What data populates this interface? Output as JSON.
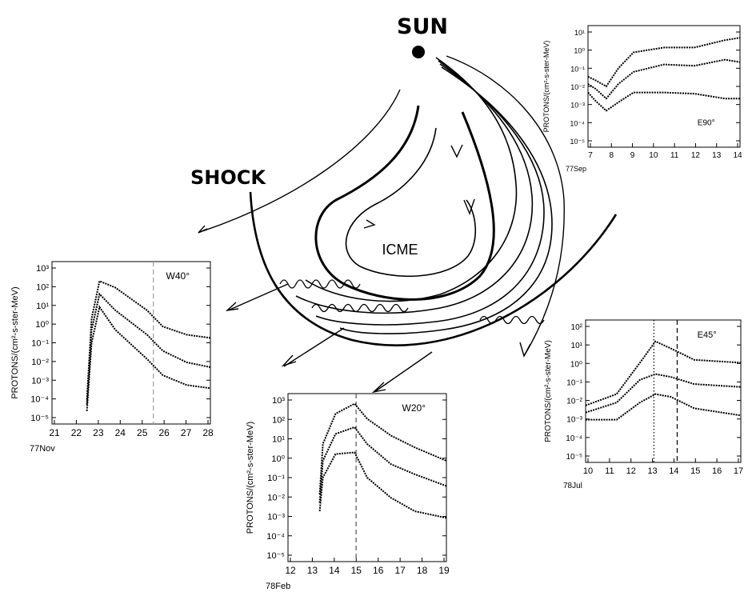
{
  "diagram": {
    "sun_label": "SUN",
    "shock_label": "SHOCK",
    "icme_label": "ICME"
  },
  "panels": [
    {
      "id": "top-right",
      "y_label": "PROTONS/(cm²-s-ster-MeV)",
      "y_ticks": [
        "10¹",
        "10⁰",
        "10⁻¹",
        "10⁻²",
        "10⁻³",
        "10⁻⁴",
        "10⁻⁵"
      ],
      "x_ticks": [
        "7",
        "8",
        "9",
        "10",
        "11",
        "12",
        "13",
        "14"
      ],
      "x_caption": "77Sep",
      "annotation": "E90°"
    },
    {
      "id": "left",
      "y_label": "PROTONS/(cm²-s-ster-MeV)",
      "y_ticks": [
        "10³",
        "10²",
        "10¹",
        "10⁰",
        "10⁻¹",
        "10⁻²",
        "10⁻³",
        "10⁻⁴",
        "10⁻⁵"
      ],
      "x_ticks": [
        "21",
        "22",
        "23",
        "24",
        "25",
        "26",
        "27",
        "28"
      ],
      "x_caption": "77Nov",
      "annotation": "W40°"
    },
    {
      "id": "bottom-middle",
      "y_label": "PROTONS/(cm²-s-ster-MeV)",
      "y_ticks": [
        "10³",
        "10²",
        "10¹",
        "10⁰",
        "10⁻¹",
        "10⁻²",
        "10⁻³",
        "10⁻⁴",
        "10⁻⁵"
      ],
      "x_ticks": [
        "12",
        "13",
        "14",
        "15",
        "16",
        "17",
        "18",
        "19"
      ],
      "x_caption": "78Feb",
      "annotation": "W20°"
    },
    {
      "id": "right",
      "y_label": "PROTONS/(cm²-s-ster-MeV)",
      "y_ticks": [
        "10²",
        "10¹",
        "10⁰",
        "10⁻¹",
        "10⁻²",
        "10⁻³",
        "10⁻⁴",
        "10⁻⁵"
      ],
      "x_ticks": [
        "10",
        "11",
        "12",
        "13",
        "14",
        "15",
        "16",
        "17"
      ],
      "x_caption": "78Jul",
      "annotation": "E45°"
    }
  ]
}
